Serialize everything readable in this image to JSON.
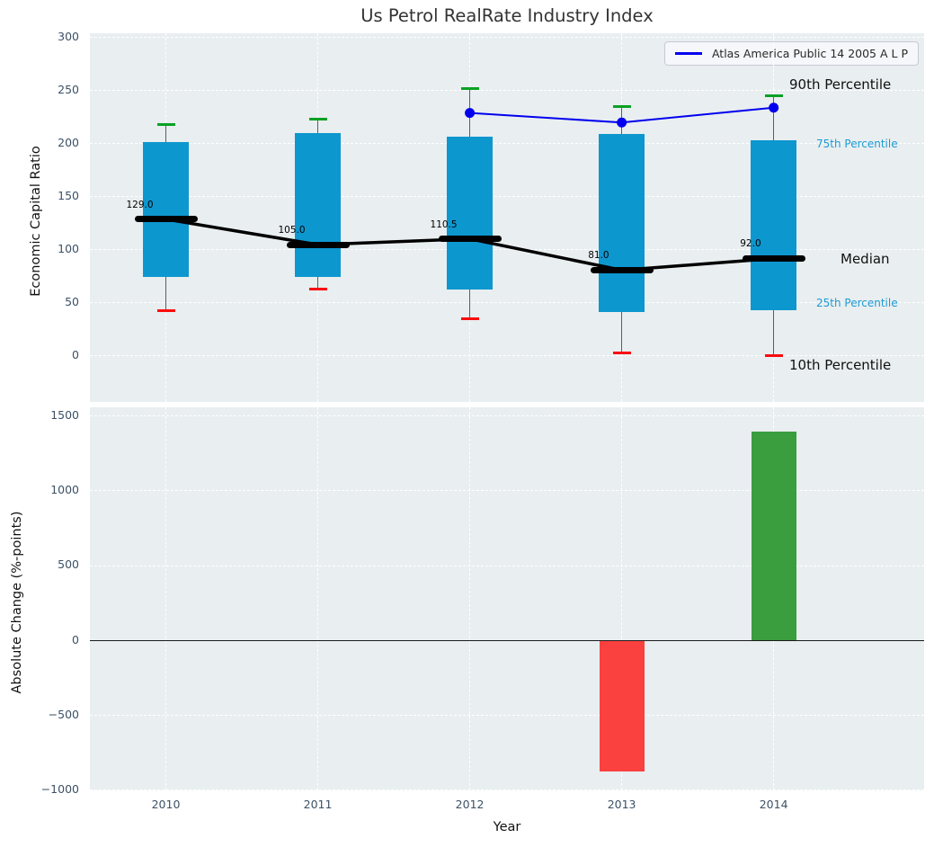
{
  "title": "Us Petrol RealRate Industry Index",
  "colors": {
    "axes_background": "#e9eef0",
    "grid": "#ffffff",
    "tick_text": "#3d5166",
    "box_fill": "#0d97cf",
    "median": "#000000",
    "p90_cap": "#0aa124",
    "p10_cap": "#f90d0d",
    "atlas_line": "#0000ee",
    "bar_positive": "#3a9d3e",
    "bar_negative": "#fb4040",
    "percentile_label": "#1b9bd3"
  },
  "chart_data": [
    {
      "id": "percentile_chart",
      "type": "box",
      "title": "Us Petrol RealRate Industry Index",
      "ylabel": "Economic Capital Ratio",
      "categories": [
        2010,
        2011,
        2012,
        2013,
        2014
      ],
      "ytick_values": [
        300,
        250,
        200,
        150,
        100,
        50,
        0
      ],
      "ytick_labels": [
        "300",
        "250",
        "200",
        "150",
        "100",
        "50",
        "0"
      ],
      "ylim": [
        -43,
        304
      ],
      "xlim": [
        2009.5,
        2014.99
      ],
      "grid": "white dashed",
      "legend_position": "upper right",
      "series": [
        {
          "name": "90th Percentile",
          "role": "p90",
          "color": "#0aa124",
          "values": [
            218,
            223,
            252,
            235,
            245
          ]
        },
        {
          "name": "75th Percentile",
          "role": "p75",
          "color": "#0d97cf",
          "values": [
            202,
            210,
            207,
            209,
            203
          ]
        },
        {
          "name": "Median",
          "role": "median",
          "color": "#000000",
          "values": [
            129,
            105,
            110.5,
            81,
            92
          ]
        },
        {
          "name": "25th Percentile",
          "role": "p25",
          "color": "#0d97cf",
          "values": [
            75,
            75,
            63,
            42,
            43
          ]
        },
        {
          "name": "10th Percentile",
          "role": "p10",
          "color": "#f90d0d",
          "values": [
            43,
            63,
            35,
            3,
            1
          ]
        },
        {
          "name": "Atlas America Public 14 2005 A L P",
          "role": "atlas",
          "color": "#0000ee",
          "values": [
            null,
            null,
            229,
            220,
            234
          ]
        }
      ],
      "median_value_labels": [
        "129.0",
        "105.0",
        "110.5",
        "81.0",
        "92.0"
      ],
      "annotations": [
        {
          "text": "90th Percentile",
          "style": "major"
        },
        {
          "text": "75th Percentile",
          "style": "minor"
        },
        {
          "text": "Median",
          "style": "major"
        },
        {
          "text": "25th Percentile",
          "style": "minor"
        },
        {
          "text": "10th Percentile",
          "style": "major"
        }
      ]
    },
    {
      "id": "change_chart",
      "type": "bar",
      "ylabel": "Absolute Change (%-points)",
      "xlabel": "Year",
      "categories": [
        2010,
        2011,
        2012,
        2013,
        2014
      ],
      "xtick_labels": [
        "2010",
        "2011",
        "2012",
        "2013",
        "2014"
      ],
      "values": [
        0,
        0,
        0,
        -875,
        1400
      ],
      "colors_by_sign": {
        "positive": "#3a9d3e",
        "negative": "#fb4040"
      },
      "ytick_values": [
        1500,
        1000,
        500,
        0,
        -500,
        -1000
      ],
      "ytick_labels": [
        "1500",
        "1000",
        "500",
        "0",
        "−500",
        "−1000"
      ],
      "ylim": [
        -1000,
        1560
      ],
      "zero_line": true,
      "grid": "white dashed"
    }
  ]
}
